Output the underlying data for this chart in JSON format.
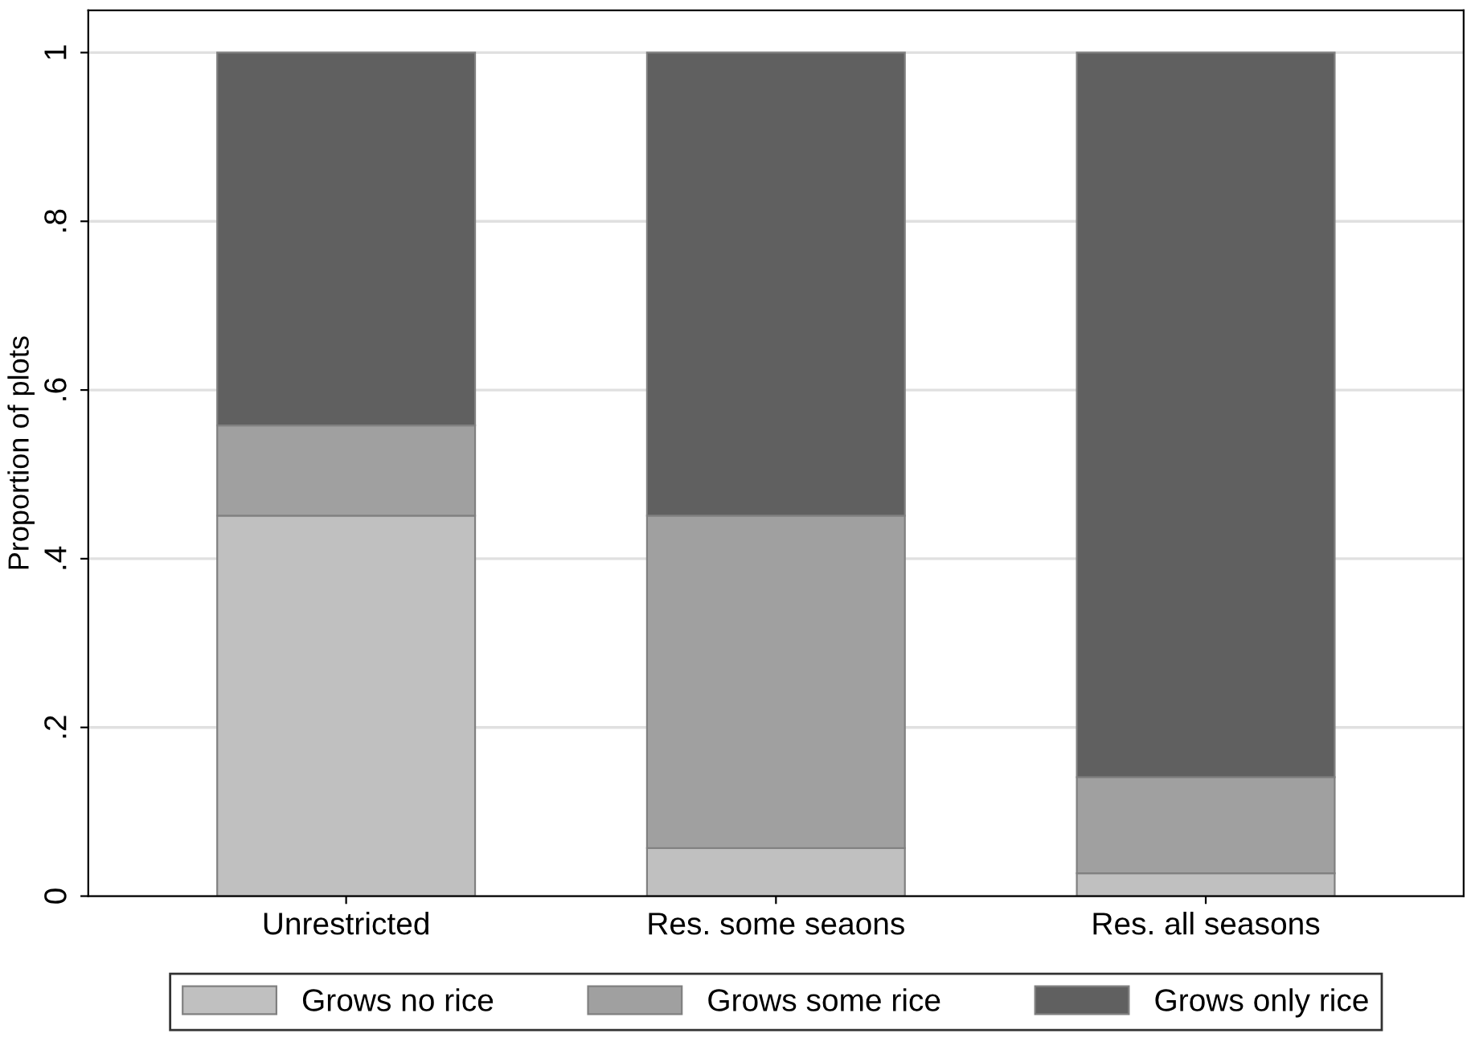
{
  "chart_data": {
    "type": "bar",
    "stacked": true,
    "ylabel": "Proportion of plots",
    "categories": [
      "Unrestricted",
      "Res. some seaons",
      "Res. all seasons"
    ],
    "series": [
      {
        "name": "Grows no rice",
        "color": "#c0c0c0",
        "values": [
          0.451,
          0.057,
          0.027
        ]
      },
      {
        "name": "Grows some rice",
        "color": "#a0a0a0",
        "values": [
          0.107,
          0.394,
          0.114
        ]
      },
      {
        "name": "Grows only rice",
        "color": "#606060",
        "values": [
          0.442,
          0.549,
          0.859
        ]
      }
    ],
    "ylim": [
      0,
      1.05
    ],
    "yticks": [
      0,
      {
        "value": 0.2,
        "label": ".2"
      },
      {
        "value": 0.4,
        "label": ".4"
      },
      {
        "value": 0.6,
        "label": ".6"
      },
      {
        "value": 0.8,
        "label": ".8"
      },
      1
    ],
    "grid": "y",
    "legend": "bottom"
  }
}
